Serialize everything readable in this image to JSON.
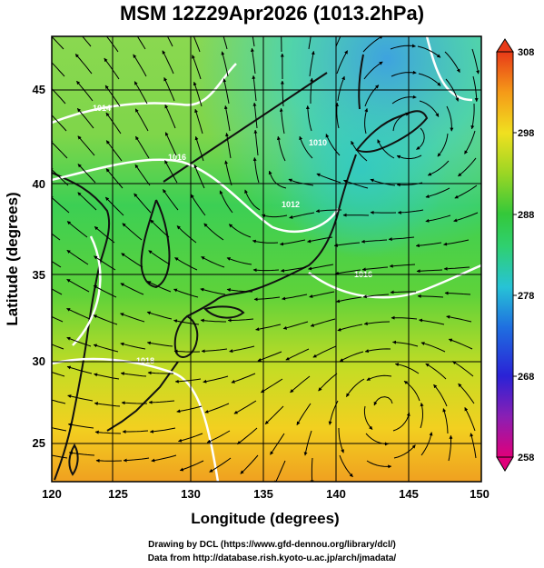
{
  "title": "MSM 12Z29Apr2026 (1013.2hPa)",
  "axes": {
    "xlabel": "Longitude (degrees)",
    "ylabel": "Latitude  (degrees)",
    "xlim": [
      120,
      150
    ],
    "ylim": [
      22.5,
      47.5
    ],
    "xticks": [
      "120",
      "125",
      "130",
      "135",
      "140",
      "145",
      "150"
    ],
    "yticks": [
      "25",
      "30",
      "35",
      "40",
      "45"
    ]
  },
  "colorbar": {
    "range": [
      258,
      308
    ],
    "ticks": [
      "308",
      "298",
      "288",
      "278",
      "268",
      "258"
    ],
    "colors": [
      "#e0007a",
      "#8a1fb4",
      "#2a22d6",
      "#1f6fe0",
      "#27c3d6",
      "#2fd070",
      "#34c83a",
      "#9bd624",
      "#f0e020",
      "#f59a18",
      "#e83a18"
    ]
  },
  "isobar_labels": [
    "1014",
    "1016",
    "1010",
    "1012",
    "1018"
  ],
  "credits": {
    "line1": "Drawing by DCL (https://www.gfd-dennou.org/library/dcl/)",
    "line2": "Data from http://database.rish.kyoto-u.ac.jp/arch/jmadata/"
  }
}
